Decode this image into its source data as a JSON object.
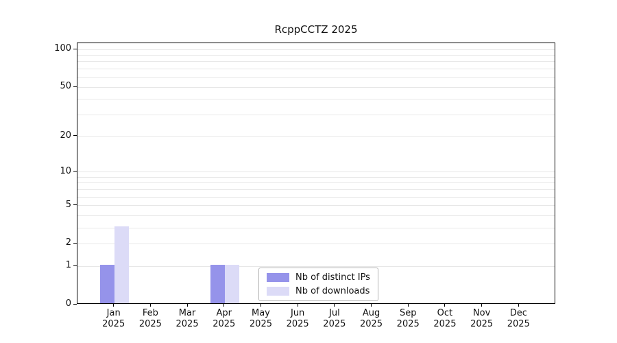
{
  "chart_data": {
    "type": "bar",
    "title": "RcppCCTZ 2025",
    "x_months": [
      "Jan",
      "Feb",
      "Mar",
      "Apr",
      "May",
      "Jun",
      "Jul",
      "Aug",
      "Sep",
      "Oct",
      "Nov",
      "Dec"
    ],
    "x_year": "2025",
    "series": [
      {
        "name": "Nb of distinct IPs",
        "color": "#9593ea",
        "values": [
          1,
          0,
          0,
          1,
          0,
          0,
          0,
          0,
          0,
          0,
          0,
          0
        ]
      },
      {
        "name": "Nb of downloads",
        "color": "#dcdbf7",
        "values": [
          3,
          0,
          0,
          1,
          0,
          0,
          0,
          0,
          0,
          0,
          0,
          0
        ]
      }
    ],
    "y_scale": "log10(1+v)",
    "y_tick_labels": [
      0,
      1,
      2,
      5,
      10,
      20,
      50,
      100
    ],
    "grid_values": [
      1,
      2,
      3,
      4,
      5,
      6,
      7,
      8,
      9,
      10,
      20,
      30,
      40,
      50,
      60,
      70,
      80,
      90,
      100
    ],
    "ylim": [
      0,
      105
    ],
    "legend_position": "inside-bottom-center",
    "colors": {
      "grid": "#e7e7e7",
      "axis": "#000000",
      "background": "#ffffff"
    }
  }
}
